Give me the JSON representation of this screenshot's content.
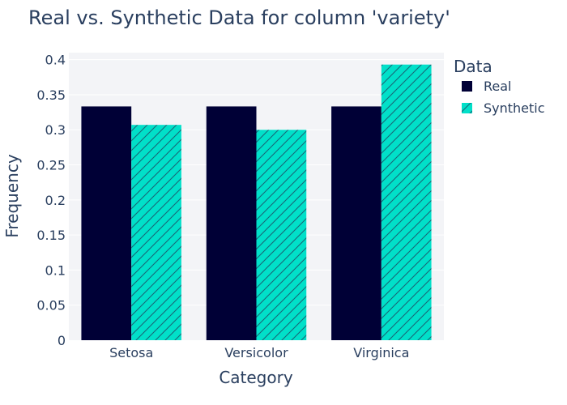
{
  "chart_data": {
    "type": "bar",
    "title": "Real vs. Synthetic Data for column 'variety'",
    "xlabel": "Category",
    "ylabel": "Frequency",
    "categories": [
      "Setosa",
      "Versicolor",
      "Virginica"
    ],
    "series": [
      {
        "name": "Real",
        "values": [
          0.3333,
          0.3333,
          0.3333
        ],
        "color": "#000036",
        "pattern": "solid"
      },
      {
        "name": "Synthetic",
        "values": [
          0.307,
          0.3,
          0.393
        ],
        "color": "#01E0C9",
        "pattern": "diagonal-hatch"
      }
    ],
    "ylim": [
      0,
      0.41
    ],
    "yticks": [
      0,
      0.05,
      0.1,
      0.15,
      0.2,
      0.25,
      0.3,
      0.35,
      0.4
    ],
    "ytick_labels": [
      "0",
      "0.05",
      "0.1",
      "0.15",
      "0.2",
      "0.25",
      "0.3",
      "0.35",
      "0.4"
    ],
    "grid": true,
    "legend": {
      "title": "Data",
      "placement": "top-right"
    },
    "colors": {
      "plot_background": "#F3F4F7",
      "gridline": "#FFFFFF",
      "text": "#2A3F5F"
    }
  }
}
